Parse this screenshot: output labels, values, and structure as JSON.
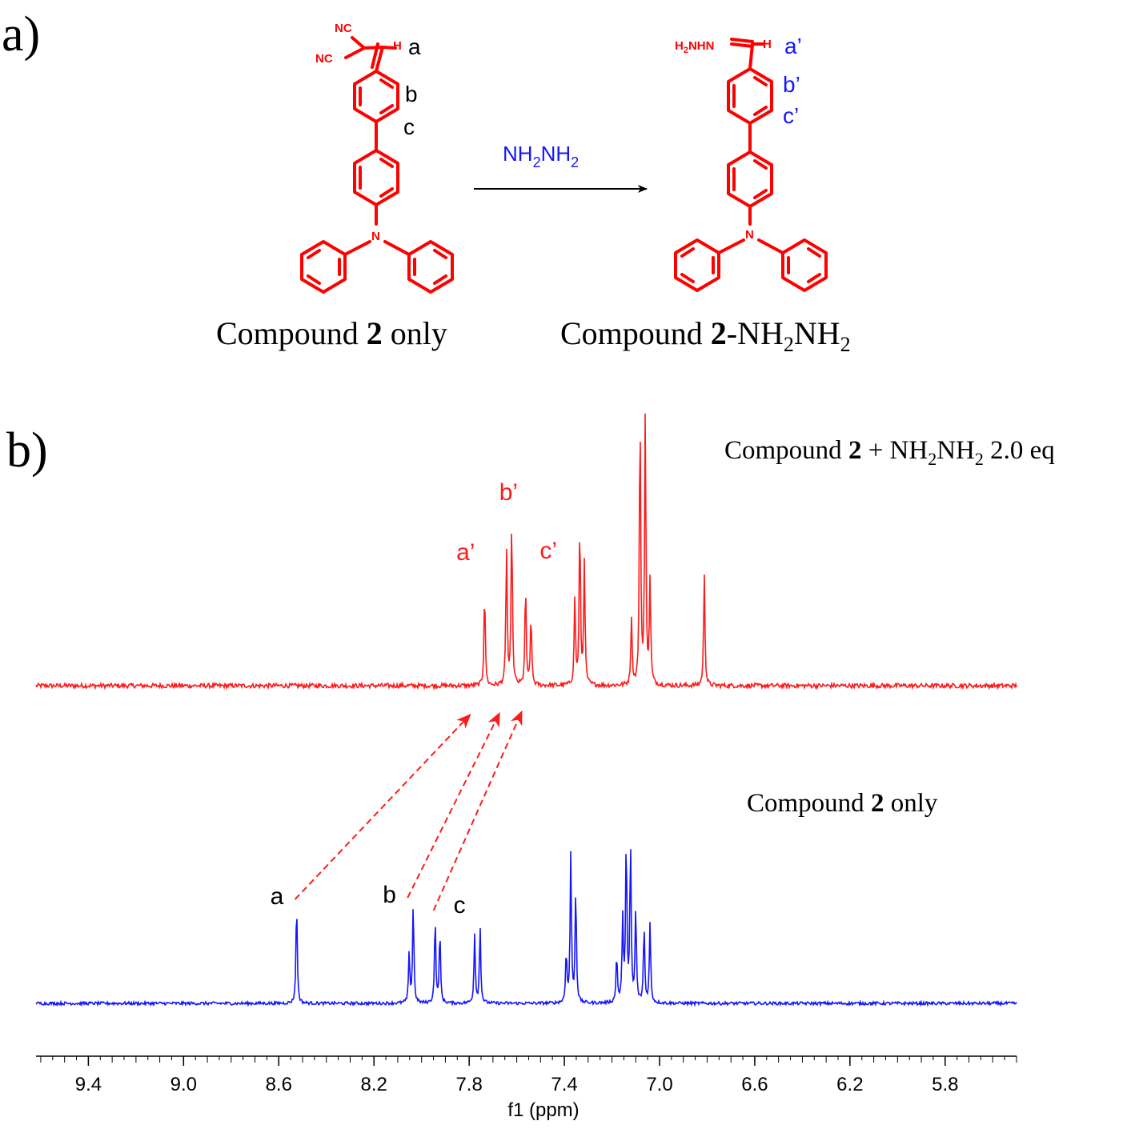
{
  "panel_a": {
    "label": "a)",
    "reactant": {
      "atoms": {
        "nc1": "NC",
        "nc2": "NC",
        "h": "H"
      },
      "proton_labels": [
        "a",
        "b",
        "c"
      ],
      "caption_prefix": "Compound ",
      "caption_bold": "2",
      "caption_suffix": " only"
    },
    "reagent": {
      "base": "NH",
      "sub1": "2",
      "mid": "NH",
      "sub2": "2"
    },
    "product": {
      "atoms": {
        "h2nhn_h": "H",
        "h2nhn_sub": "2",
        "h2nhn_rest": "NHN",
        "h": "H"
      },
      "proton_labels": [
        "a’",
        "b’",
        "c’"
      ],
      "caption_prefix": "Compound ",
      "caption_bold": "2",
      "caption_mid": "-NH",
      "caption_sub1": "2",
      "caption_mid2": "NH",
      "caption_sub2": "2"
    }
  },
  "panel_b": {
    "label": "b)",
    "top_title": {
      "prefix": "Compound ",
      "bold": "2",
      "mid": " + NH",
      "sub1": "2",
      "mid2": "NH",
      "sub2": "2",
      "suffix": " 2.0 eq"
    },
    "bottom_title": {
      "prefix": "Compound ",
      "bold": "2",
      "suffix": " only"
    }
  },
  "colors": {
    "product": "#ff1a1a",
    "reactant": "#1515ff",
    "structure": "#ff0000"
  },
  "chart_data": {
    "type": "line",
    "xlabel": "f1 (ppm)",
    "x_reversed": true,
    "xlim": [
      9.62,
      5.5
    ],
    "ticks": [
      9.4,
      9.0,
      8.6,
      8.2,
      7.8,
      7.4,
      7.0,
      6.6,
      6.2,
      5.8
    ],
    "tick_labels": [
      "9.4",
      "9.0",
      "8.6",
      "8.2",
      "7.8",
      "7.4",
      "7.0",
      "6.6",
      "6.2",
      "5.8"
    ],
    "series": [
      {
        "id": "product",
        "color": "#ff1a1a",
        "peaks": [
          {
            "ppm": 7.735,
            "h": 0.34
          },
          {
            "ppm": 7.643,
            "h": 0.49
          },
          {
            "ppm": 7.621,
            "h": 0.59
          },
          {
            "ppm": 7.563,
            "h": 0.35
          },
          {
            "ppm": 7.54,
            "h": 0.25
          },
          {
            "ppm": 7.356,
            "h": 0.31
          },
          {
            "ppm": 7.335,
            "h": 0.57
          },
          {
            "ppm": 7.316,
            "h": 0.44
          },
          {
            "ppm": 7.118,
            "h": 0.24
          },
          {
            "ppm": 7.082,
            "h": 0.97
          },
          {
            "ppm": 7.06,
            "h": 0.95
          },
          {
            "ppm": 7.04,
            "h": 0.37
          },
          {
            "ppm": 6.812,
            "h": 0.4
          }
        ],
        "peak_labels": [
          {
            "text": "a’",
            "ppm": 7.78
          },
          {
            "text": "b’",
            "ppm": 7.64
          },
          {
            "text": "c’",
            "ppm": 7.53
          }
        ]
      },
      {
        "id": "reactant",
        "color": "#1515ff",
        "peaks": [
          {
            "ppm": 8.525,
            "h": 0.53
          },
          {
            "ppm": 8.052,
            "h": 0.26
          },
          {
            "ppm": 8.035,
            "h": 0.52
          },
          {
            "ppm": 7.943,
            "h": 0.44
          },
          {
            "ppm": 7.923,
            "h": 0.37
          },
          {
            "ppm": 7.777,
            "h": 0.36
          },
          {
            "ppm": 7.754,
            "h": 0.4
          },
          {
            "ppm": 7.392,
            "h": 0.27
          },
          {
            "ppm": 7.373,
            "h": 0.78
          },
          {
            "ppm": 7.352,
            "h": 0.6
          },
          {
            "ppm": 7.18,
            "h": 0.25
          },
          {
            "ppm": 7.155,
            "h": 0.43
          },
          {
            "ppm": 7.14,
            "h": 0.85
          },
          {
            "ppm": 7.122,
            "h": 0.82
          },
          {
            "ppm": 7.1,
            "h": 0.49
          },
          {
            "ppm": 7.065,
            "h": 0.4
          },
          {
            "ppm": 7.04,
            "h": 0.42
          }
        ],
        "peak_labels": [
          {
            "text": "a",
            "ppm": 8.525
          },
          {
            "text": "b",
            "ppm": 8.035
          },
          {
            "text": "c",
            "ppm": 7.923
          }
        ]
      }
    ],
    "shift_arrows": [
      {
        "from": 8.525,
        "to": 7.735
      },
      {
        "from": 8.052,
        "to": 7.625
      },
      {
        "from": 7.943,
        "to": 7.545
      }
    ]
  }
}
